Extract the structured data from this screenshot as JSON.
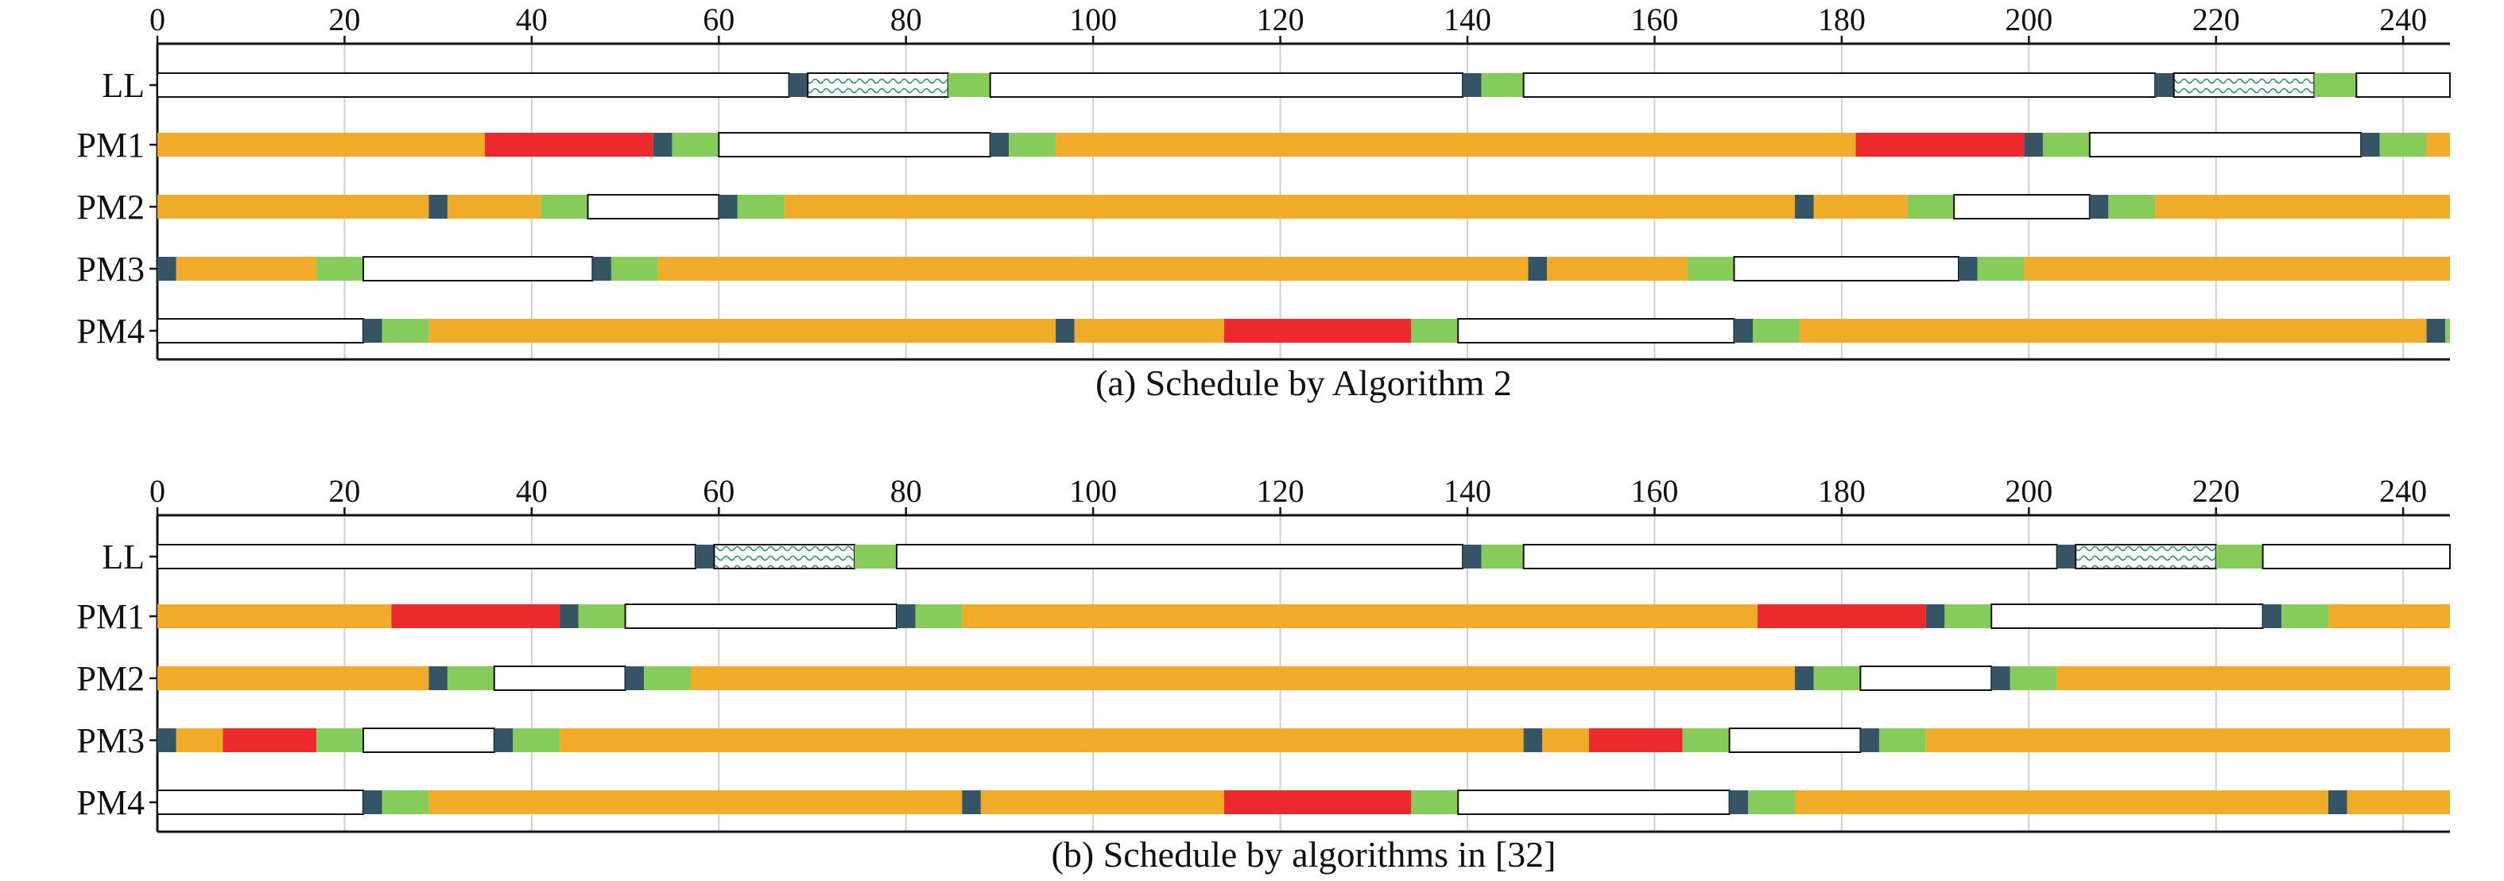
{
  "colors": {
    "busy": "#f0ac28",
    "fail": "#ec2a2e",
    "green": "#86cc5b",
    "dark": "#355466",
    "idle": "#ffffff",
    "hatch": "#2f8a63",
    "grid": "#cfcfcf",
    "axis": "#111111"
  },
  "chart_data": [
    {
      "type": "gantt",
      "title": "(a) Schedule by Algorithm 2",
      "xlim": [
        0,
        245
      ],
      "xticks": [
        0,
        20,
        40,
        60,
        80,
        100,
        120,
        140,
        160,
        180,
        200,
        220,
        240
      ],
      "grid": true,
      "rows": [
        {
          "label": "LL",
          "segments": [
            {
              "start": 0,
              "end": 67.5,
              "kind": "idle"
            },
            {
              "start": 67.5,
              "end": 69.5,
              "kind": "dark"
            },
            {
              "start": 69.5,
              "end": 84.5,
              "kind": "hatch"
            },
            {
              "start": 84.5,
              "end": 89,
              "kind": "green"
            },
            {
              "start": 89,
              "end": 139.5,
              "kind": "idle"
            },
            {
              "start": 139.5,
              "end": 141.5,
              "kind": "dark"
            },
            {
              "start": 141.5,
              "end": 146,
              "kind": "green"
            },
            {
              "start": 146,
              "end": 213.5,
              "kind": "idle"
            },
            {
              "start": 213.5,
              "end": 215.5,
              "kind": "dark"
            },
            {
              "start": 215.5,
              "end": 230.5,
              "kind": "hatch"
            },
            {
              "start": 230.5,
              "end": 235,
              "kind": "green"
            },
            {
              "start": 235,
              "end": 245,
              "kind": "idle"
            }
          ]
        },
        {
          "label": "PM1",
          "segments": [
            {
              "start": 0,
              "end": 35,
              "kind": "busy"
            },
            {
              "start": 35,
              "end": 53,
              "kind": "fail"
            },
            {
              "start": 53,
              "end": 55,
              "kind": "dark"
            },
            {
              "start": 55,
              "end": 60,
              "kind": "green"
            },
            {
              "start": 60,
              "end": 89,
              "kind": "idle"
            },
            {
              "start": 89,
              "end": 91,
              "kind": "dark"
            },
            {
              "start": 91,
              "end": 96,
              "kind": "green"
            },
            {
              "start": 96,
              "end": 181.5,
              "kind": "busy"
            },
            {
              "start": 181.5,
              "end": 199.5,
              "kind": "fail"
            },
            {
              "start": 199.5,
              "end": 201.5,
              "kind": "dark"
            },
            {
              "start": 201.5,
              "end": 206.5,
              "kind": "green"
            },
            {
              "start": 206.5,
              "end": 235.5,
              "kind": "idle"
            },
            {
              "start": 235.5,
              "end": 237.5,
              "kind": "dark"
            },
            {
              "start": 237.5,
              "end": 242.5,
              "kind": "green"
            },
            {
              "start": 242.5,
              "end": 245,
              "kind": "busy"
            }
          ]
        },
        {
          "label": "PM2",
          "segments": [
            {
              "start": 0,
              "end": 29,
              "kind": "busy"
            },
            {
              "start": 29,
              "end": 31,
              "kind": "dark"
            },
            {
              "start": 31,
              "end": 41,
              "kind": "busy"
            },
            {
              "start": 41,
              "end": 46,
              "kind": "green"
            },
            {
              "start": 46,
              "end": 60,
              "kind": "idle"
            },
            {
              "start": 60,
              "end": 62,
              "kind": "dark"
            },
            {
              "start": 62,
              "end": 67,
              "kind": "green"
            },
            {
              "start": 67,
              "end": 175,
              "kind": "busy"
            },
            {
              "start": 175,
              "end": 177,
              "kind": "dark"
            },
            {
              "start": 177,
              "end": 187,
              "kind": "busy"
            },
            {
              "start": 187,
              "end": 192,
              "kind": "green"
            },
            {
              "start": 192,
              "end": 206.5,
              "kind": "idle"
            },
            {
              "start": 206.5,
              "end": 208.5,
              "kind": "dark"
            },
            {
              "start": 208.5,
              "end": 213.5,
              "kind": "green"
            },
            {
              "start": 213.5,
              "end": 245,
              "kind": "busy"
            }
          ]
        },
        {
          "label": "PM3",
          "segments": [
            {
              "start": 0,
              "end": 2,
              "kind": "dark"
            },
            {
              "start": 2,
              "end": 17,
              "kind": "busy"
            },
            {
              "start": 17,
              "end": 22,
              "kind": "green"
            },
            {
              "start": 22,
              "end": 46.5,
              "kind": "idle"
            },
            {
              "start": 46.5,
              "end": 48.5,
              "kind": "dark"
            },
            {
              "start": 48.5,
              "end": 53.5,
              "kind": "green"
            },
            {
              "start": 53.5,
              "end": 146.5,
              "kind": "busy"
            },
            {
              "start": 146.5,
              "end": 148.5,
              "kind": "dark"
            },
            {
              "start": 148.5,
              "end": 163.5,
              "kind": "busy"
            },
            {
              "start": 163.5,
              "end": 168.5,
              "kind": "green"
            },
            {
              "start": 168.5,
              "end": 192.5,
              "kind": "idle"
            },
            {
              "start": 192.5,
              "end": 194.5,
              "kind": "dark"
            },
            {
              "start": 194.5,
              "end": 199.5,
              "kind": "green"
            },
            {
              "start": 199.5,
              "end": 245,
              "kind": "busy"
            }
          ]
        },
        {
          "label": "PM4",
          "segments": [
            {
              "start": 0,
              "end": 22,
              "kind": "idle"
            },
            {
              "start": 22,
              "end": 24,
              "kind": "dark"
            },
            {
              "start": 24,
              "end": 29,
              "kind": "green"
            },
            {
              "start": 29,
              "end": 96,
              "kind": "busy"
            },
            {
              "start": 96,
              "end": 98,
              "kind": "dark"
            },
            {
              "start": 98,
              "end": 114,
              "kind": "busy"
            },
            {
              "start": 114,
              "end": 134,
              "kind": "fail"
            },
            {
              "start": 134,
              "end": 139,
              "kind": "green"
            },
            {
              "start": 139,
              "end": 168.5,
              "kind": "idle"
            },
            {
              "start": 168.5,
              "end": 170.5,
              "kind": "dark"
            },
            {
              "start": 170.5,
              "end": 175.5,
              "kind": "green"
            },
            {
              "start": 175.5,
              "end": 242.5,
              "kind": "busy"
            },
            {
              "start": 242.5,
              "end": 244.5,
              "kind": "dark"
            },
            {
              "start": 244.5,
              "end": 245,
              "kind": "green"
            }
          ]
        }
      ]
    },
    {
      "type": "gantt",
      "title": "(b) Schedule by algorithms in [32]",
      "xlim": [
        0,
        245
      ],
      "xticks": [
        0,
        20,
        40,
        60,
        80,
        100,
        120,
        140,
        160,
        180,
        200,
        220,
        240
      ],
      "grid": true,
      "rows": [
        {
          "label": "LL",
          "segments": [
            {
              "start": 0,
              "end": 57.5,
              "kind": "idle"
            },
            {
              "start": 57.5,
              "end": 59.5,
              "kind": "dark"
            },
            {
              "start": 59.5,
              "end": 74.5,
              "kind": "hatch"
            },
            {
              "start": 74.5,
              "end": 79,
              "kind": "green"
            },
            {
              "start": 79,
              "end": 139.5,
              "kind": "idle"
            },
            {
              "start": 139.5,
              "end": 141.5,
              "kind": "dark"
            },
            {
              "start": 141.5,
              "end": 146,
              "kind": "green"
            },
            {
              "start": 146,
              "end": 203,
              "kind": "idle"
            },
            {
              "start": 203,
              "end": 205,
              "kind": "dark"
            },
            {
              "start": 205,
              "end": 220,
              "kind": "hatch"
            },
            {
              "start": 220,
              "end": 225,
              "kind": "green"
            },
            {
              "start": 225,
              "end": 245,
              "kind": "idle"
            }
          ]
        },
        {
          "label": "PM1",
          "segments": [
            {
              "start": 0,
              "end": 25,
              "kind": "busy"
            },
            {
              "start": 25,
              "end": 43,
              "kind": "fail"
            },
            {
              "start": 43,
              "end": 45,
              "kind": "dark"
            },
            {
              "start": 45,
              "end": 50,
              "kind": "green"
            },
            {
              "start": 50,
              "end": 79,
              "kind": "idle"
            },
            {
              "start": 79,
              "end": 81,
              "kind": "dark"
            },
            {
              "start": 81,
              "end": 86,
              "kind": "green"
            },
            {
              "start": 86,
              "end": 171,
              "kind": "busy"
            },
            {
              "start": 171,
              "end": 189,
              "kind": "fail"
            },
            {
              "start": 189,
              "end": 191,
              "kind": "dark"
            },
            {
              "start": 191,
              "end": 196,
              "kind": "green"
            },
            {
              "start": 196,
              "end": 225,
              "kind": "idle"
            },
            {
              "start": 225,
              "end": 227,
              "kind": "dark"
            },
            {
              "start": 227,
              "end": 232,
              "kind": "green"
            },
            {
              "start": 232,
              "end": 245,
              "kind": "busy"
            }
          ]
        },
        {
          "label": "PM2",
          "segments": [
            {
              "start": 0,
              "end": 29,
              "kind": "busy"
            },
            {
              "start": 29,
              "end": 31,
              "kind": "dark"
            },
            {
              "start": 31,
              "end": 36,
              "kind": "green"
            },
            {
              "start": 36,
              "end": 50,
              "kind": "idle"
            },
            {
              "start": 50,
              "end": 52,
              "kind": "dark"
            },
            {
              "start": 52,
              "end": 57,
              "kind": "green"
            },
            {
              "start": 57,
              "end": 175,
              "kind": "busy"
            },
            {
              "start": 175,
              "end": 177,
              "kind": "dark"
            },
            {
              "start": 177,
              "end": 182,
              "kind": "green"
            },
            {
              "start": 182,
              "end": 196,
              "kind": "idle"
            },
            {
              "start": 196,
              "end": 198,
              "kind": "dark"
            },
            {
              "start": 198,
              "end": 203,
              "kind": "green"
            },
            {
              "start": 203,
              "end": 245,
              "kind": "busy"
            }
          ]
        },
        {
          "label": "PM3",
          "segments": [
            {
              "start": 0,
              "end": 2,
              "kind": "dark"
            },
            {
              "start": 2,
              "end": 7,
              "kind": "busy"
            },
            {
              "start": 7,
              "end": 17,
              "kind": "fail"
            },
            {
              "start": 17,
              "end": 22,
              "kind": "green"
            },
            {
              "start": 22,
              "end": 36,
              "kind": "idle"
            },
            {
              "start": 36,
              "end": 38,
              "kind": "dark"
            },
            {
              "start": 38,
              "end": 43,
              "kind": "green"
            },
            {
              "start": 43,
              "end": 146,
              "kind": "busy"
            },
            {
              "start": 146,
              "end": 148,
              "kind": "dark"
            },
            {
              "start": 148,
              "end": 153,
              "kind": "busy"
            },
            {
              "start": 153,
              "end": 163,
              "kind": "fail"
            },
            {
              "start": 163,
              "end": 168,
              "kind": "green"
            },
            {
              "start": 168,
              "end": 182,
              "kind": "idle"
            },
            {
              "start": 182,
              "end": 184,
              "kind": "dark"
            },
            {
              "start": 184,
              "end": 189,
              "kind": "green"
            },
            {
              "start": 189,
              "end": 245,
              "kind": "busy"
            }
          ]
        },
        {
          "label": "PM4",
          "segments": [
            {
              "start": 0,
              "end": 22,
              "kind": "idle"
            },
            {
              "start": 22,
              "end": 24,
              "kind": "dark"
            },
            {
              "start": 24,
              "end": 29,
              "kind": "green"
            },
            {
              "start": 29,
              "end": 86,
              "kind": "busy"
            },
            {
              "start": 86,
              "end": 88,
              "kind": "dark"
            },
            {
              "start": 88,
              "end": 114,
              "kind": "busy"
            },
            {
              "start": 114,
              "end": 134,
              "kind": "fail"
            },
            {
              "start": 134,
              "end": 139,
              "kind": "green"
            },
            {
              "start": 139,
              "end": 168,
              "kind": "idle"
            },
            {
              "start": 168,
              "end": 170,
              "kind": "dark"
            },
            {
              "start": 170,
              "end": 175,
              "kind": "green"
            },
            {
              "start": 175,
              "end": 232,
              "kind": "busy"
            },
            {
              "start": 232,
              "end": 234,
              "kind": "dark"
            },
            {
              "start": 234,
              "end": 245,
              "kind": "busy"
            }
          ]
        }
      ]
    }
  ]
}
